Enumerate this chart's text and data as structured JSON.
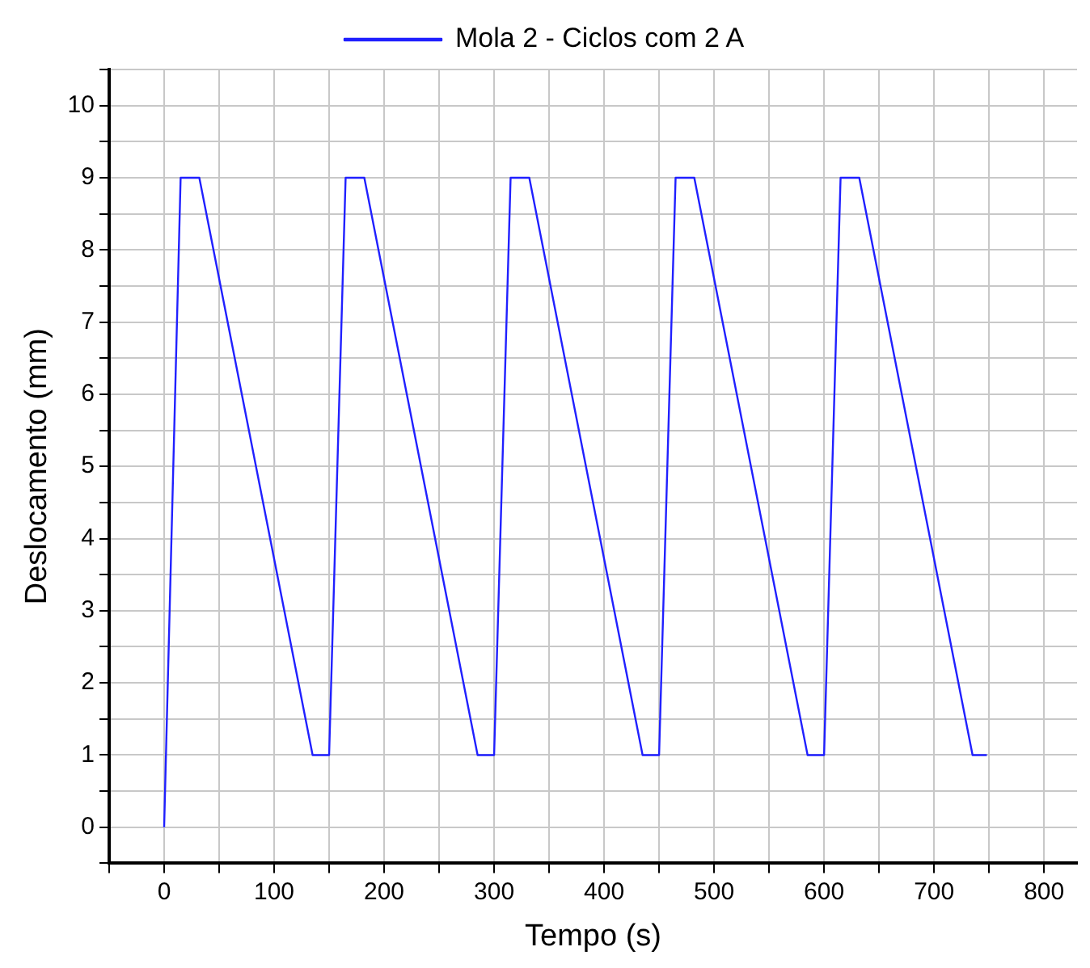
{
  "chart_data": {
    "type": "line",
    "xlabel": "Tempo (s)",
    "ylabel": "Deslocamento (mm)",
    "x": [
      0,
      15,
      32,
      135,
      150,
      165,
      182,
      285,
      300,
      315,
      332,
      435,
      450,
      465,
      482,
      585,
      600,
      615,
      632,
      735,
      748
    ],
    "series": [
      {
        "name": "Mola 2 - Ciclos com 2 A",
        "color": "#2020ff",
        "values": [
          0,
          9,
          9,
          1,
          1,
          9,
          9,
          1,
          1,
          9,
          9,
          1,
          1,
          9,
          9,
          1,
          1,
          9,
          9,
          1,
          1
        ]
      }
    ],
    "xlim": [
      -50,
      830
    ],
    "ylim": [
      -0.5,
      10.5
    ],
    "xticks": [
      {
        "value": -50,
        "label": null
      },
      0,
      {
        "value": 50,
        "label": null
      },
      100,
      {
        "value": 150,
        "label": null
      },
      200,
      {
        "value": 250,
        "label": null
      },
      300,
      {
        "value": 350,
        "label": null
      },
      400,
      {
        "value": 450,
        "label": null
      },
      500,
      {
        "value": 550,
        "label": null
      },
      600,
      {
        "value": 650,
        "label": null
      },
      700,
      {
        "value": 750,
        "label": null
      },
      800
    ],
    "yticks": [
      {
        "value": -0.5,
        "label": null
      },
      0,
      {
        "value": 0.5,
        "label": null
      },
      1,
      {
        "value": 1.5,
        "label": null
      },
      2,
      {
        "value": 2.5,
        "label": null
      },
      3,
      {
        "value": 3.5,
        "label": null
      },
      4,
      {
        "value": 4.5,
        "label": null
      },
      5,
      {
        "value": 5.5,
        "label": null
      },
      6,
      {
        "value": 6.5,
        "label": null
      },
      7,
      {
        "value": 7.5,
        "label": null
      },
      8,
      {
        "value": 8.5,
        "label": null
      },
      9,
      {
        "value": 9.5,
        "label": null
      },
      10,
      {
        "value": 10.5,
        "label": null
      }
    ],
    "grid": true,
    "legend": "top",
    "marker": "none",
    "line_style": "solid"
  }
}
